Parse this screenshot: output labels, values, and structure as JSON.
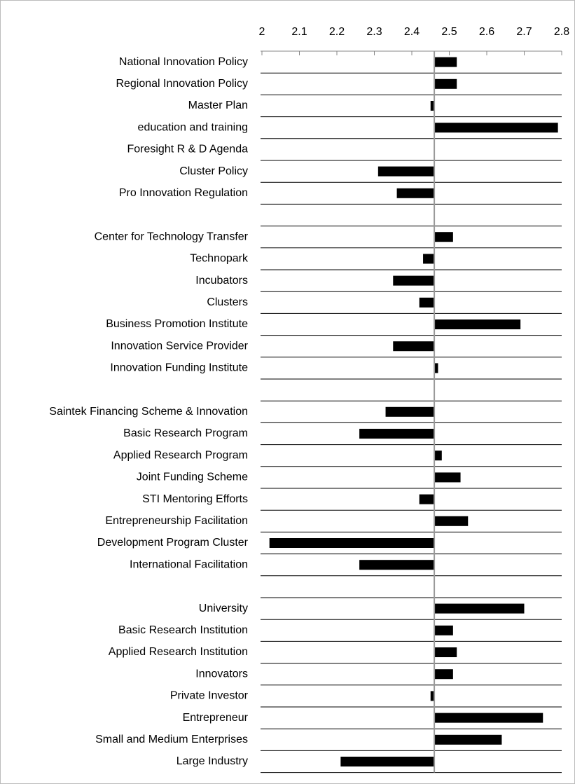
{
  "chart_data": {
    "type": "bar",
    "orientation": "horizontal",
    "color": "#000000",
    "base": 2.46,
    "xlim": [
      2,
      2.8
    ],
    "xticks": [
      2,
      2.1,
      2.2,
      2.3,
      2.4,
      2.5,
      2.6,
      2.7,
      2.8
    ],
    "categories": [
      "National Innovation Policy",
      "Regional Innovation Policy",
      "Master Plan",
      "education and training",
      "Foresight R & D Agenda",
      "Cluster Policy",
      "Pro Innovation Regulation",
      null,
      "Center for Technology Transfer",
      "Technopark",
      "Incubators",
      "Clusters",
      "Business Promotion Institute",
      "Innovation Service Provider",
      "Innovation Funding Institute",
      null,
      "Saintek Financing Scheme & Innovation",
      "Basic Research Program",
      "Applied Research Program",
      "Joint Funding Scheme",
      "STI Mentoring Efforts",
      "Entrepreneurship Facilitation",
      "Development Program Cluster",
      "International Facilitation",
      null,
      "University",
      "Basic Research Institution",
      "Applied Research Institution",
      "Innovators",
      "Private Investor",
      "Entrepreneur",
      "Small and Medium Enterprises",
      "Large Industry"
    ],
    "values": [
      2.52,
      2.52,
      2.45,
      2.79,
      2.46,
      2.31,
      2.36,
      null,
      2.51,
      2.43,
      2.35,
      2.42,
      2.69,
      2.35,
      2.47,
      null,
      2.33,
      2.26,
      2.48,
      2.53,
      2.42,
      2.55,
      2.02,
      2.26,
      null,
      2.7,
      2.51,
      2.52,
      2.51,
      2.45,
      2.75,
      2.64,
      2.21
    ]
  }
}
